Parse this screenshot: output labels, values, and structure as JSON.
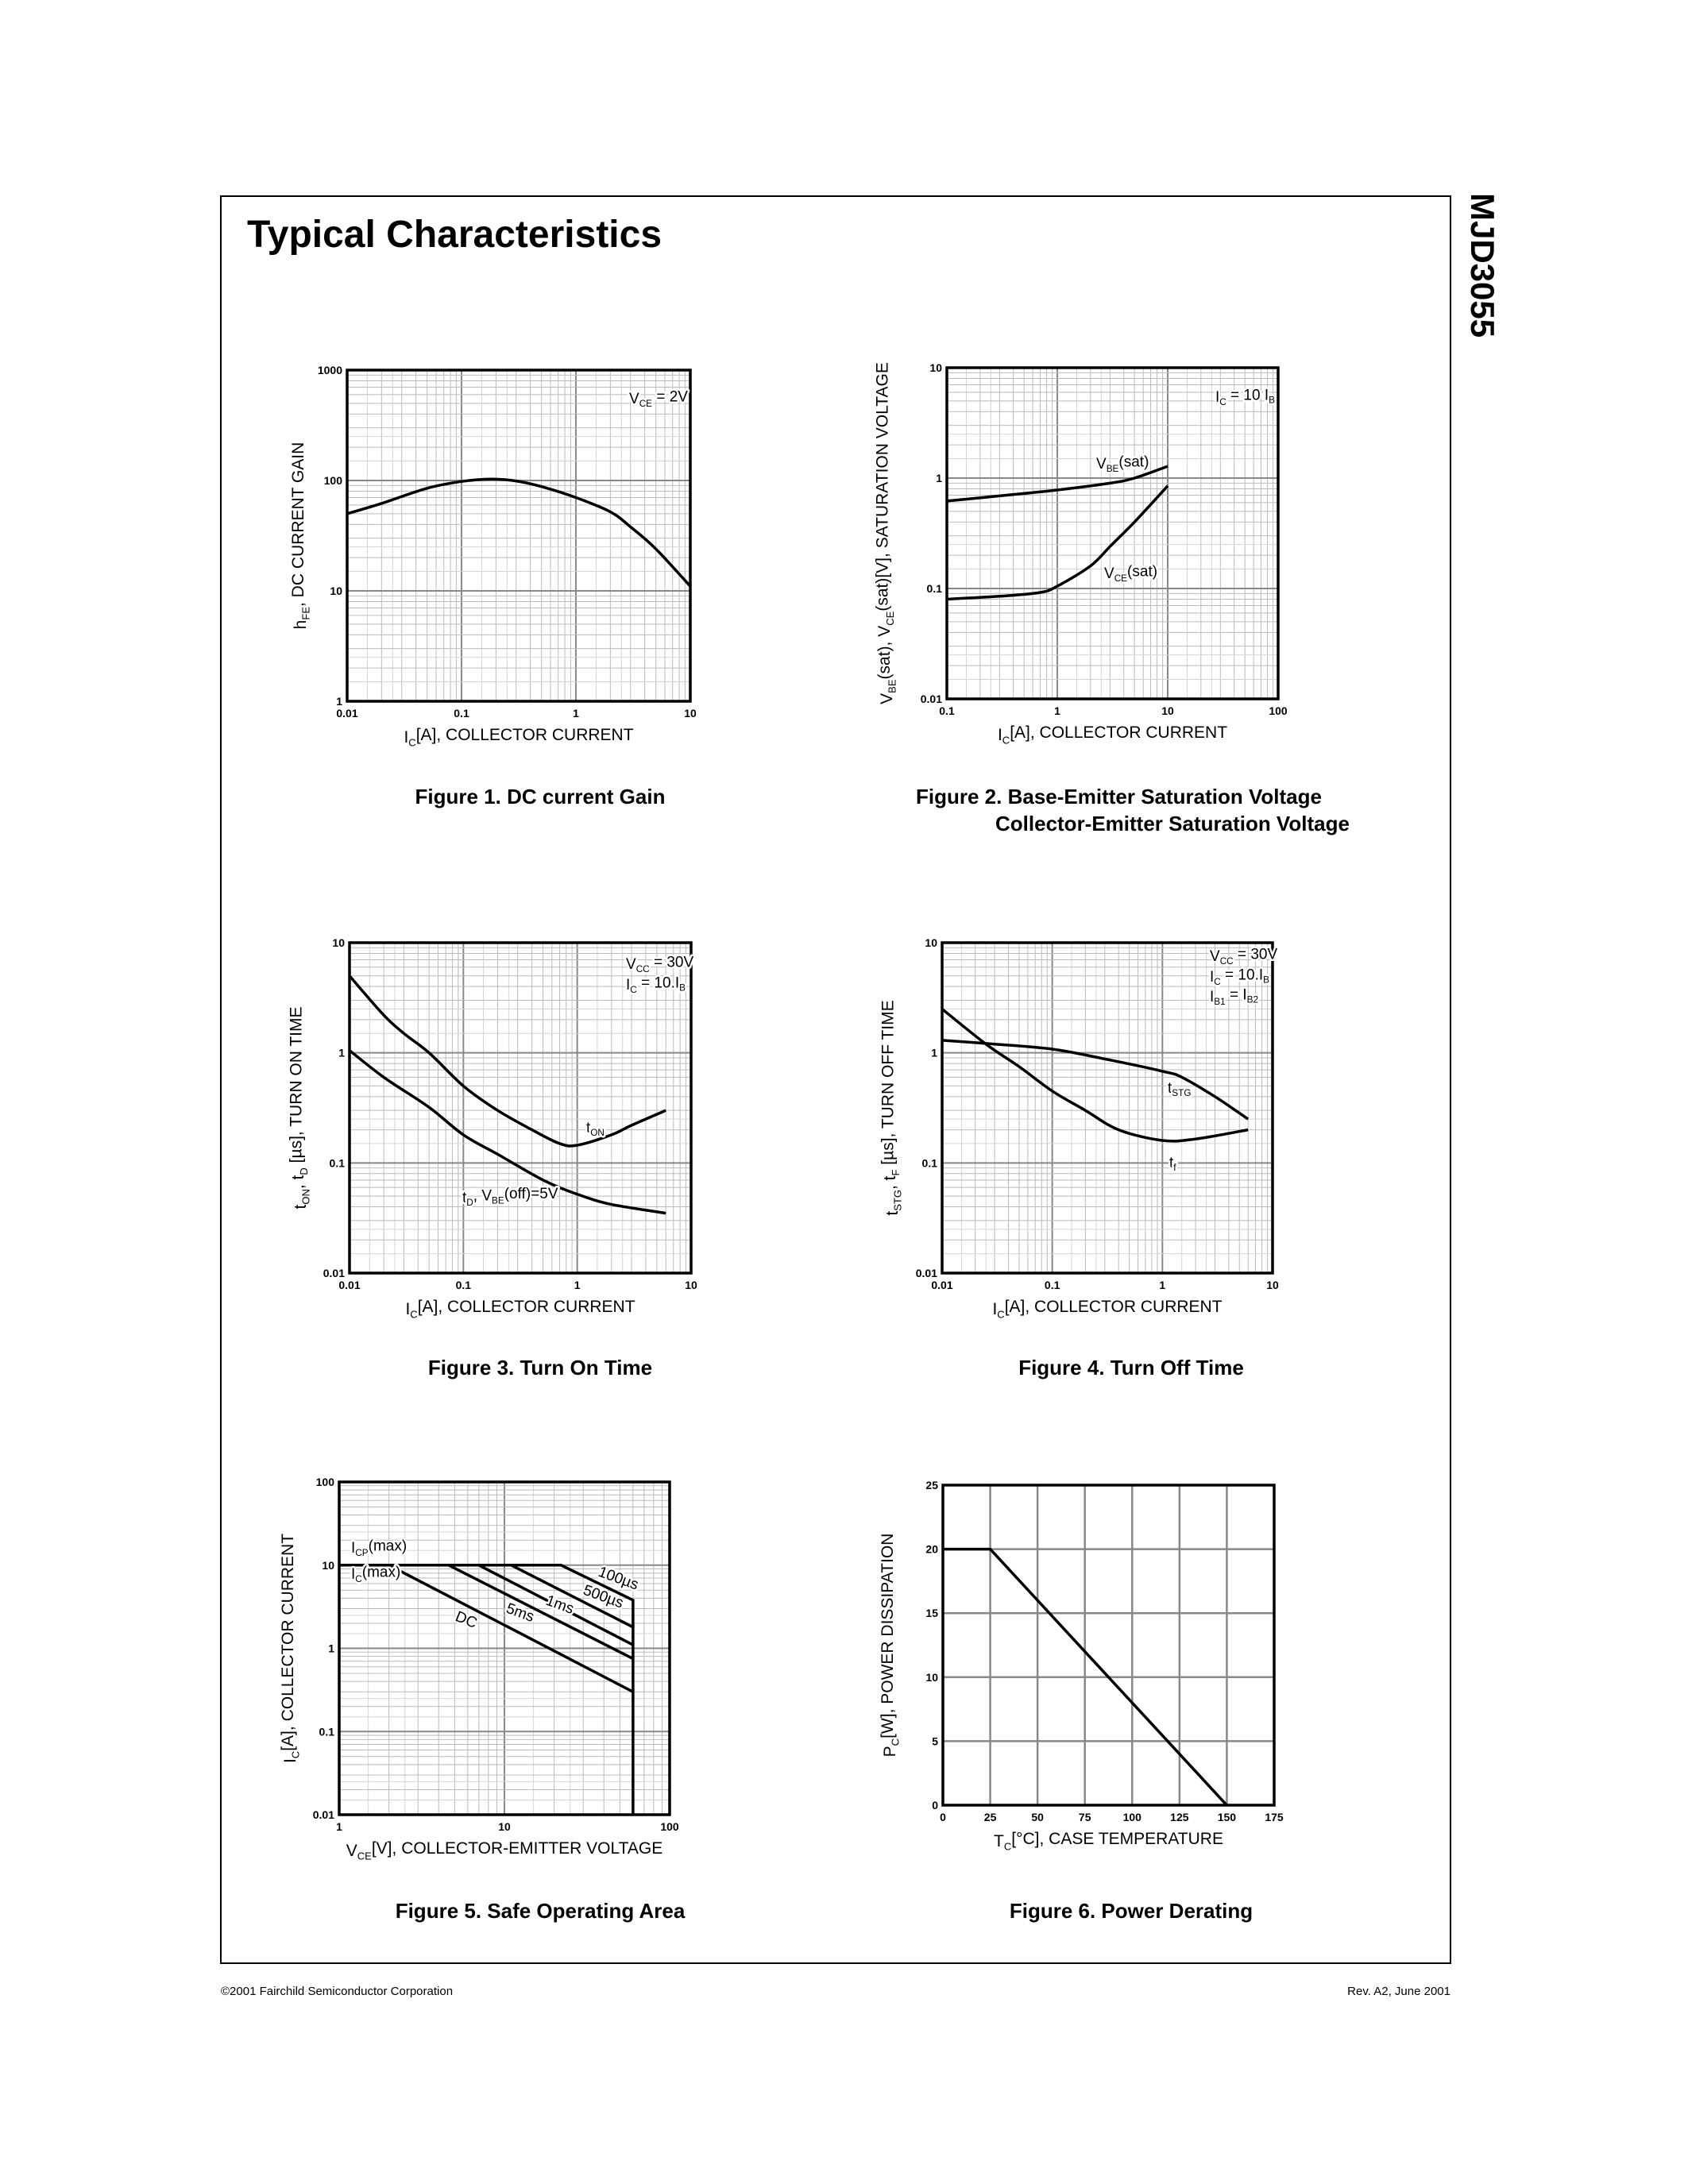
{
  "header": {
    "title": "Typical Characteristics",
    "part_number": "MJD3055"
  },
  "footer": {
    "copyright": "©2001 Fairchild Semiconductor Corporation",
    "revision": "Rev. A2, June 2001"
  },
  "colors": {
    "curve": "#000000",
    "major_grid": "#888888",
    "minor_grid": "#bbbbbb",
    "frame": "#000000"
  },
  "chart_data": [
    {
      "type": "line",
      "caption": [
        "Figure 1. DC current Gain"
      ],
      "xscale": "log",
      "yscale": "log",
      "xlim": [
        0.01,
        10
      ],
      "ylim": [
        1,
        1000
      ],
      "grid": true,
      "xticks": [
        "0.01",
        "0.1",
        "1",
        "10"
      ],
      "yticks": [
        "1",
        "10",
        "100",
        "1000"
      ],
      "xlabel": [
        [
          "I"
        ],
        [
          "C",
          "sub"
        ],
        [
          "[A], COLLECTOR CURRENT"
        ]
      ],
      "ylabel": [
        [
          "h"
        ],
        [
          "FE",
          "sub"
        ],
        [
          ", DC CURRENT GAIN"
        ]
      ],
      "annotations": [
        [
          [
            "V"
          ],
          [
            "CE",
            "sub"
          ],
          [
            " = 2V"
          ]
        ]
      ],
      "series": [
        {
          "points": [
            [
              0.01,
              50
            ],
            [
              0.02,
              62
            ],
            [
              0.05,
              85
            ],
            [
              0.1,
              98
            ],
            [
              0.18,
              103
            ],
            [
              0.3,
              99
            ],
            [
              0.5,
              88
            ],
            [
              1,
              70
            ],
            [
              2,
              52
            ],
            [
              3,
              38
            ],
            [
              5,
              24
            ],
            [
              10,
              11
            ]
          ]
        }
      ]
    },
    {
      "type": "line",
      "caption": [
        "Figure 2. Base-Emitter Saturation Voltage",
        "Collector-Emitter Saturation Voltage"
      ],
      "xscale": "log",
      "yscale": "log",
      "xlim": [
        0.1,
        100
      ],
      "ylim": [
        0.01,
        10
      ],
      "grid": true,
      "xticks": [
        "0.1",
        "1",
        "10",
        "100"
      ],
      "yticks": [
        "0.01",
        "0.1",
        "1",
        "10"
      ],
      "xlabel": [
        [
          "I"
        ],
        [
          "C",
          "sub"
        ],
        [
          "[A], COLLECTOR CURRENT"
        ]
      ],
      "ylabel": [
        [
          "V"
        ],
        [
          "BE",
          "sub"
        ],
        [
          "(sat), V"
        ],
        [
          "CE",
          "sub"
        ],
        [
          "(sat)[V], SATURATION VOLTAGE"
        ]
      ],
      "annotations": [
        [
          [
            "I"
          ],
          [
            "C",
            "sub"
          ],
          [
            " = 10 I"
          ],
          [
            "B",
            "sub"
          ]
        ],
        [
          [
            "V"
          ],
          [
            "BE",
            "sub"
          ],
          [
            "(sat)"
          ]
        ],
        [
          [
            "V"
          ],
          [
            "CE",
            "sub"
          ],
          [
            "(sat)"
          ]
        ]
      ],
      "series": [
        {
          "points": [
            [
              0.1,
              0.62
            ],
            [
              0.3,
              0.69
            ],
            [
              1,
              0.78
            ],
            [
              3,
              0.9
            ],
            [
              5,
              1.0
            ],
            [
              10,
              1.28
            ]
          ]
        },
        {
          "points": [
            [
              0.1,
              0.08
            ],
            [
              0.3,
              0.085
            ],
            [
              0.7,
              0.092
            ],
            [
              1,
              0.105
            ],
            [
              2,
              0.16
            ],
            [
              3,
              0.24
            ],
            [
              5,
              0.4
            ],
            [
              10,
              0.85
            ]
          ]
        }
      ]
    },
    {
      "type": "line",
      "caption": [
        "Figure 3. Turn On Time"
      ],
      "xscale": "log",
      "yscale": "log",
      "xlim": [
        0.01,
        10
      ],
      "ylim": [
        0.01,
        10
      ],
      "grid": true,
      "xticks": [
        "0.01",
        "0.1",
        "1",
        "10"
      ],
      "yticks": [
        "0.01",
        "0.1",
        "1",
        "10"
      ],
      "xlabel": [
        [
          "I"
        ],
        [
          "C",
          "sub"
        ],
        [
          "[A], COLLECTOR CURRENT"
        ]
      ],
      "ylabel": [
        [
          "t"
        ],
        [
          "ON",
          "sub"
        ],
        [
          ", t"
        ],
        [
          "D",
          "sub"
        ],
        [
          " [µs], TURN ON TIME"
        ]
      ],
      "annotations": [
        [
          [
            "V"
          ],
          [
            "CC",
            "sub"
          ],
          [
            " = 30V"
          ]
        ],
        [
          [
            "I"
          ],
          [
            "C",
            "sub"
          ],
          [
            " = 10.I"
          ],
          [
            "B",
            "sub"
          ]
        ],
        [
          [
            "t"
          ],
          [
            "ON",
            "sub"
          ]
        ],
        [
          [
            "t"
          ],
          [
            "D",
            "sub"
          ],
          [
            ", V"
          ],
          [
            "BE",
            "sub"
          ],
          [
            "(off)=5V"
          ]
        ]
      ],
      "series": [
        {
          "points": [
            [
              0.01,
              5
            ],
            [
              0.02,
              2.2
            ],
            [
              0.03,
              1.5
            ],
            [
              0.05,
              1.0
            ],
            [
              0.1,
              0.5
            ],
            [
              0.2,
              0.3
            ],
            [
              0.4,
              0.2
            ],
            [
              0.7,
              0.15
            ],
            [
              1,
              0.145
            ],
            [
              2,
              0.18
            ],
            [
              3,
              0.22
            ],
            [
              6,
              0.3
            ]
          ]
        },
        {
          "points": [
            [
              0.01,
              1.05
            ],
            [
              0.02,
              0.6
            ],
            [
              0.05,
              0.32
            ],
            [
              0.1,
              0.18
            ],
            [
              0.2,
              0.12
            ],
            [
              0.5,
              0.07
            ],
            [
              1,
              0.052
            ],
            [
              2,
              0.042
            ],
            [
              6,
              0.035
            ]
          ]
        }
      ]
    },
    {
      "type": "line",
      "caption": [
        "Figure 4. Turn Off Time"
      ],
      "xscale": "log",
      "yscale": "log",
      "xlim": [
        0.01,
        10
      ],
      "ylim": [
        0.01,
        10
      ],
      "grid": true,
      "xticks": [
        "0.01",
        "0.1",
        "1",
        "10"
      ],
      "yticks": [
        "0.01",
        "0.1",
        "1",
        "10"
      ],
      "xlabel": [
        [
          "I"
        ],
        [
          "C",
          "sub"
        ],
        [
          "[A], COLLECTOR CURRENT"
        ]
      ],
      "ylabel": [
        [
          "t"
        ],
        [
          "STG",
          "sub"
        ],
        [
          ", t"
        ],
        [
          "F",
          "sub"
        ],
        [
          " [µs], TURN OFF TIME"
        ]
      ],
      "annotations": [
        [
          [
            "V"
          ],
          [
            "CC",
            "sub"
          ],
          [
            " = 30V"
          ]
        ],
        [
          [
            "I"
          ],
          [
            "C",
            "sub"
          ],
          [
            " = 10.I"
          ],
          [
            "B",
            "sub"
          ]
        ],
        [
          [
            "I"
          ],
          [
            "B1",
            "sub"
          ],
          [
            " = I"
          ],
          [
            "B2",
            "sub"
          ]
        ],
        [
          [
            "t"
          ],
          [
            "STG",
            "sub"
          ]
        ],
        [
          [
            "t"
          ],
          [
            "f",
            "sub"
          ]
        ]
      ],
      "series": [
        {
          "points": [
            [
              0.01,
              1.3
            ],
            [
              0.03,
              1.2
            ],
            [
              0.1,
              1.08
            ],
            [
              0.3,
              0.88
            ],
            [
              1,
              0.68
            ],
            [
              1.5,
              0.6
            ],
            [
              3,
              0.4
            ],
            [
              6,
              0.25
            ]
          ]
        },
        {
          "points": [
            [
              0.01,
              2.5
            ],
            [
              0.025,
              1.2
            ],
            [
              0.05,
              0.75
            ],
            [
              0.1,
              0.45
            ],
            [
              0.2,
              0.3
            ],
            [
              0.4,
              0.2
            ],
            [
              1,
              0.16
            ],
            [
              2,
              0.165
            ],
            [
              6,
              0.2
            ]
          ]
        }
      ]
    },
    {
      "type": "line",
      "caption": [
        "Figure 5. Safe Operating Area"
      ],
      "xscale": "log",
      "yscale": "log",
      "xlim": [
        1,
        100
      ],
      "ylim": [
        0.01,
        100
      ],
      "grid": true,
      "xticks": [
        "1",
        "10",
        "100"
      ],
      "yticks": [
        "0.01",
        "0.1",
        "1",
        "10",
        "100"
      ],
      "xlabel": [
        [
          "V"
        ],
        [
          "CE",
          "sub"
        ],
        [
          "[V], COLLECTOR-EMITTER VOLTAGE"
        ]
      ],
      "ylabel": [
        [
          "I"
        ],
        [
          "C",
          "sub"
        ],
        [
          "[A], COLLECTOR CURRENT"
        ]
      ],
      "annotations": [
        [
          [
            "I"
          ],
          [
            "CP",
            "sub"
          ],
          [
            "(max)"
          ]
        ],
        [
          [
            "I"
          ],
          [
            "C",
            "sub"
          ],
          [
            "(max)"
          ]
        ],
        [
          [
            "DC"
          ]
        ],
        [
          [
            "5ms"
          ]
        ],
        [
          [
            "1ms"
          ]
        ],
        [
          [
            "500µs"
          ]
        ],
        [
          [
            "100µs"
          ]
        ]
      ],
      "series": [
        {
          "points": [
            [
              1,
              10
            ],
            [
              22,
              10
            ],
            [
              60,
              3.8
            ],
            [
              60,
              0.01
            ]
          ],
          "straight": true
        },
        {
          "points": [
            [
              11,
              10
            ],
            [
              60,
              1.8
            ]
          ],
          "straight": true
        },
        {
          "points": [
            [
              7,
              10
            ],
            [
              60,
              1.1
            ]
          ],
          "straight": true
        },
        {
          "points": [
            [
              4.6,
              10
            ],
            [
              60,
              0.75
            ]
          ],
          "straight": true
        },
        {
          "points": [
            [
              2,
              10
            ],
            [
              60,
              0.3
            ]
          ],
          "straight": true
        }
      ]
    },
    {
      "type": "line",
      "caption": [
        "Figure 6. Power Derating"
      ],
      "xscale": "linear",
      "yscale": "linear",
      "xlim": [
        0,
        175
      ],
      "ylim": [
        0,
        25
      ],
      "grid": true,
      "xticks": [
        "0",
        "25",
        "50",
        "75",
        "100",
        "125",
        "150",
        "175"
      ],
      "yticks": [
        "0",
        "5",
        "10",
        "15",
        "20",
        "25"
      ],
      "xlabel": [
        [
          "T"
        ],
        [
          "C",
          "sub"
        ],
        [
          "[°C], CASE TEMPERATURE"
        ]
      ],
      "ylabel": [
        [
          "P"
        ],
        [
          "C",
          "sub"
        ],
        [
          "[W], POWER DISSIPATION"
        ]
      ],
      "annotations": [],
      "series": [
        {
          "points": [
            [
              0,
              20
            ],
            [
              25,
              20
            ],
            [
              150,
              0
            ]
          ],
          "straight": true
        }
      ]
    }
  ]
}
